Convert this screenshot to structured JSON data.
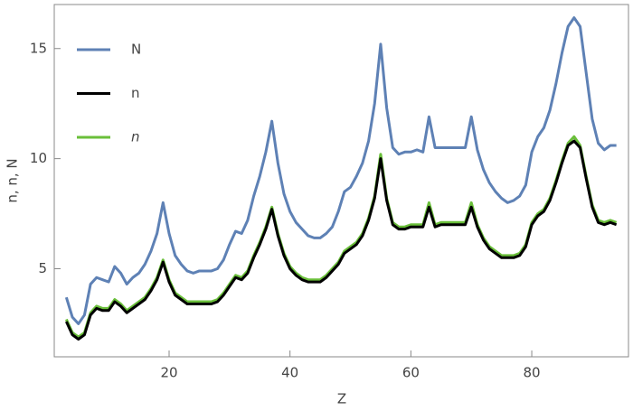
{
  "chart_data": {
    "type": "line",
    "x_label": "Z",
    "y_label": "n, n, N",
    "x": [
      3,
      4,
      5,
      6,
      7,
      8,
      9,
      10,
      11,
      12,
      13,
      14,
      15,
      16,
      17,
      18,
      19,
      20,
      21,
      22,
      23,
      24,
      25,
      26,
      27,
      28,
      29,
      30,
      31,
      32,
      33,
      34,
      35,
      36,
      37,
      38,
      39,
      40,
      41,
      42,
      43,
      44,
      45,
      46,
      47,
      48,
      49,
      50,
      51,
      52,
      53,
      54,
      55,
      56,
      57,
      58,
      59,
      60,
      61,
      62,
      63,
      64,
      65,
      66,
      67,
      68,
      69,
      70,
      71,
      72,
      73,
      74,
      75,
      76,
      77,
      78,
      79,
      80,
      81,
      82,
      83,
      84,
      85,
      86,
      87,
      88,
      89,
      90,
      91,
      92,
      93,
      94
    ],
    "series": [
      {
        "name": "N",
        "color": "#5e81b5",
        "italic": false,
        "values": [
          3.7,
          2.8,
          2.5,
          2.9,
          4.3,
          4.6,
          4.5,
          4.4,
          5.1,
          4.8,
          4.3,
          4.6,
          4.8,
          5.2,
          5.8,
          6.6,
          8.0,
          6.6,
          5.6,
          5.2,
          4.9,
          4.8,
          4.9,
          4.9,
          4.9,
          5.0,
          5.4,
          6.1,
          6.7,
          6.6,
          7.2,
          8.3,
          9.2,
          10.3,
          11.7,
          9.8,
          8.4,
          7.6,
          7.1,
          6.8,
          6.5,
          6.4,
          6.4,
          6.6,
          6.9,
          7.6,
          8.5,
          8.7,
          9.2,
          9.8,
          10.8,
          12.5,
          15.2,
          12.3,
          10.5,
          10.2,
          10.3,
          10.3,
          10.4,
          10.3,
          11.9,
          10.5,
          10.5,
          10.5,
          10.5,
          10.5,
          10.5,
          11.9,
          10.4,
          9.5,
          8.9,
          8.5,
          8.2,
          8.0,
          8.1,
          8.3,
          8.8,
          10.3,
          11.0,
          11.4,
          12.2,
          13.4,
          14.8,
          16.0,
          16.4,
          16.0,
          13.9,
          11.8,
          10.7,
          10.4,
          10.6,
          10.6
        ]
      },
      {
        "name": "n",
        "color": "#000000",
        "italic": false,
        "values": [
          2.6,
          2.0,
          1.8,
          2.0,
          2.9,
          3.2,
          3.1,
          3.1,
          3.5,
          3.3,
          3.0,
          3.2,
          3.4,
          3.6,
          4.0,
          4.5,
          5.3,
          4.4,
          3.8,
          3.6,
          3.4,
          3.4,
          3.4,
          3.4,
          3.4,
          3.5,
          3.8,
          4.2,
          4.6,
          4.5,
          4.8,
          5.5,
          6.1,
          6.8,
          7.7,
          6.5,
          5.6,
          5.0,
          4.7,
          4.5,
          4.4,
          4.4,
          4.4,
          4.6,
          4.9,
          5.2,
          5.7,
          5.9,
          6.1,
          6.5,
          7.2,
          8.2,
          10.0,
          8.1,
          7.0,
          6.8,
          6.8,
          6.9,
          6.9,
          6.9,
          7.8,
          6.9,
          7.0,
          7.0,
          7.0,
          7.0,
          7.0,
          7.8,
          6.9,
          6.3,
          5.9,
          5.7,
          5.5,
          5.5,
          5.5,
          5.6,
          6.0,
          7.0,
          7.4,
          7.6,
          8.1,
          8.9,
          9.8,
          10.6,
          10.8,
          10.5,
          9.1,
          7.8,
          7.1,
          7.0,
          7.1,
          7.0
        ]
      },
      {
        "name": "n",
        "color": "#6abf3a",
        "italic": true,
        "values": [
          2.7,
          2.1,
          1.9,
          2.1,
          3.0,
          3.3,
          3.2,
          3.2,
          3.6,
          3.4,
          3.1,
          3.3,
          3.5,
          3.7,
          4.1,
          4.6,
          5.4,
          4.5,
          3.9,
          3.7,
          3.5,
          3.5,
          3.5,
          3.5,
          3.5,
          3.6,
          3.9,
          4.3,
          4.7,
          4.6,
          4.9,
          5.6,
          6.2,
          6.9,
          7.8,
          6.6,
          5.7,
          5.1,
          4.8,
          4.6,
          4.5,
          4.5,
          4.5,
          4.7,
          5.0,
          5.3,
          5.8,
          6.0,
          6.2,
          6.6,
          7.3,
          8.3,
          10.2,
          8.2,
          7.1,
          6.9,
          6.9,
          7.0,
          7.0,
          7.0,
          8.0,
          7.0,
          7.1,
          7.1,
          7.1,
          7.1,
          7.1,
          8.0,
          7.0,
          6.4,
          6.0,
          5.8,
          5.6,
          5.6,
          5.6,
          5.7,
          6.1,
          7.1,
          7.5,
          7.7,
          8.2,
          9.0,
          9.9,
          10.7,
          11.0,
          10.6,
          9.2,
          7.9,
          7.2,
          7.1,
          7.2,
          7.1
        ]
      }
    ],
    "xlim": [
      1,
      96
    ],
    "xticks": [
      20,
      40,
      60,
      80
    ],
    "ylim": [
      1,
      17
    ],
    "yticks": [
      5,
      10,
      15
    ],
    "legend": "top-left"
  }
}
